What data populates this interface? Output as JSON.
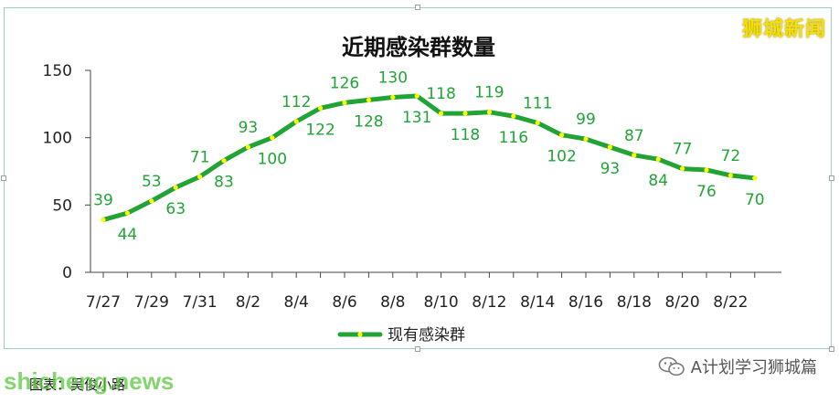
{
  "watermark": "狮城新闻",
  "caption": "图表：吴俊小路",
  "site_watermark": "shicheng.news",
  "account_label": "A计划学习狮城篇",
  "colors": {
    "line": "#21a336",
    "marker": "#ffff00",
    "axis": "#444444"
  },
  "chart_data": {
    "type": "line",
    "title": "近期感染群数量",
    "xlabel": "",
    "ylabel": "",
    "ylim": [
      0,
      150
    ],
    "yticks": [
      "0",
      "50",
      "100",
      "150"
    ],
    "xticks": [
      "7/27",
      "7/29",
      "7/31",
      "8/2",
      "8/4",
      "8/6",
      "8/8",
      "8/10",
      "8/12",
      "8/14",
      "8/16",
      "8/18",
      "8/20",
      "8/22"
    ],
    "categories": [
      "7/27",
      "7/28",
      "7/29",
      "7/30",
      "7/31",
      "8/1",
      "8/2",
      "8/3",
      "8/4",
      "8/5",
      "8/6",
      "8/7",
      "8/8",
      "8/9",
      "8/10",
      "8/11",
      "8/12",
      "8/13",
      "8/14",
      "8/15",
      "8/16",
      "8/17",
      "8/18",
      "8/19",
      "8/20",
      "8/21",
      "8/22",
      "8/23"
    ],
    "series": [
      {
        "name": "现有感染群",
        "values": [
          39,
          44,
          53,
          63,
          71,
          83,
          93,
          100,
          112,
          122,
          126,
          128,
          130,
          131,
          118,
          118,
          119,
          116,
          111,
          102,
          99,
          93,
          87,
          84,
          77,
          76,
          72,
          70
        ]
      }
    ],
    "grid": false,
    "legend": "bottom-center"
  }
}
